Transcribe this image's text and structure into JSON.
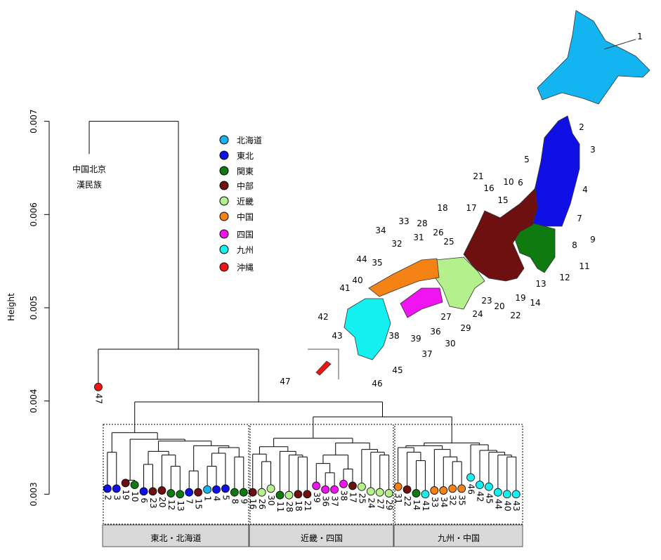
{
  "chart_data": {
    "type": "dendrogram",
    "y_label": "Height",
    "ylim": [
      0.00295,
      0.00705
    ],
    "yticks": [
      0.003,
      0.004,
      0.005,
      0.006,
      0.007
    ],
    "legend": [
      {
        "name": "北海道",
        "color": "#14b4f0"
      },
      {
        "name": "東北",
        "color": "#1010e6"
      },
      {
        "name": "関東",
        "color": "#0f7a0f"
      },
      {
        "name": "中部",
        "color": "#6e1010"
      },
      {
        "name": "近畿",
        "color": "#b4f08c"
      },
      {
        "name": "中国",
        "color": "#f58214"
      },
      {
        "name": "四国",
        "color": "#f014f0"
      },
      {
        "name": "九州",
        "color": "#14f0f0"
      },
      {
        "name": "沖縄",
        "color": "#f01414"
      }
    ],
    "leaves": [
      {
        "label_lines": [
          "中国北京",
          "漢民族"
        ],
        "height": 0.00665
      },
      {
        "label": "47",
        "color": "#f01414",
        "height": 0.00415
      },
      {
        "label": "2",
        "color": "#1010e6",
        "height": 0.00306
      },
      {
        "label": "3",
        "color": "#1010e6",
        "height": 0.00306
      },
      {
        "label": "19",
        "color": "#6e1010",
        "height": 0.00312
      },
      {
        "label": "10",
        "color": "#0f7a0f",
        "height": 0.0031
      },
      {
        "label": "6",
        "color": "#1010e6",
        "height": 0.00303
      },
      {
        "label": "23",
        "color": "#6e1010",
        "height": 0.00303
      },
      {
        "label": "20",
        "color": "#6e1010",
        "height": 0.00304
      },
      {
        "label": "12",
        "color": "#0f7a0f",
        "height": 0.00301
      },
      {
        "label": "13",
        "color": "#0f7a0f",
        "height": 0.003
      },
      {
        "label": "7",
        "color": "#1010e6",
        "height": 0.00302
      },
      {
        "label": "15",
        "color": "#6e1010",
        "height": 0.00302
      },
      {
        "label": "1",
        "color": "#14b4f0",
        "height": 0.00305
      },
      {
        "label": "4",
        "color": "#1010e6",
        "height": 0.00305
      },
      {
        "label": "5",
        "color": "#1010e6",
        "height": 0.00306
      },
      {
        "label": "8",
        "color": "#0f7a0f",
        "height": 0.00302
      },
      {
        "label": "9",
        "color": "#0f7a0f",
        "height": 0.00302
      },
      {
        "label": "16",
        "color": "#6e1010",
        "height": 0.00302
      },
      {
        "label": "26",
        "color": "#b4f08c",
        "height": 0.00302
      },
      {
        "label": "30",
        "color": "#b4f08c",
        "height": 0.00306
      },
      {
        "label": "11",
        "color": "#0f7a0f",
        "height": 0.00299
      },
      {
        "label": "28",
        "color": "#b4f08c",
        "height": 0.00299
      },
      {
        "label": "18",
        "color": "#6e1010",
        "height": 0.003
      },
      {
        "label": "21",
        "color": "#6e1010",
        "height": 0.003
      },
      {
        "label": "39",
        "color": "#f014f0",
        "height": 0.00309
      },
      {
        "label": "36",
        "color": "#f014f0",
        "height": 0.00305
      },
      {
        "label": "37",
        "color": "#f014f0",
        "height": 0.00305
      },
      {
        "label": "38",
        "color": "#f014f0",
        "height": 0.00311
      },
      {
        "label": "17",
        "color": "#6e1010",
        "height": 0.00309
      },
      {
        "label": "25",
        "color": "#b4f08c",
        "height": 0.00308
      },
      {
        "label": "24",
        "color": "#b4f08c",
        "height": 0.00303
      },
      {
        "label": "27",
        "color": "#b4f08c",
        "height": 0.00302
      },
      {
        "label": "29",
        "color": "#b4f08c",
        "height": 0.00301
      },
      {
        "label": "31",
        "color": "#f58214",
        "height": 0.00308
      },
      {
        "label": "22",
        "color": "#6e1010",
        "height": 0.00305
      },
      {
        "label": "14",
        "color": "#0f7a0f",
        "height": 0.00301
      },
      {
        "label": "41",
        "color": "#14f0f0",
        "height": 0.003
      },
      {
        "label": "33",
        "color": "#f58214",
        "height": 0.00304
      },
      {
        "label": "34",
        "color": "#f58214",
        "height": 0.00304
      },
      {
        "label": "32",
        "color": "#f58214",
        "height": 0.00306
      },
      {
        "label": "35",
        "color": "#f58214",
        "height": 0.00306
      },
      {
        "label": "46",
        "color": "#14f0f0",
        "height": 0.00318
      },
      {
        "label": "42",
        "color": "#14f0f0",
        "height": 0.0031
      },
      {
        "label": "45",
        "color": "#14f0f0",
        "height": 0.00308
      },
      {
        "label": "44",
        "color": "#14f0f0",
        "height": 0.00302
      },
      {
        "label": "40",
        "color": "#14f0f0",
        "height": 0.003
      },
      {
        "label": "43",
        "color": "#14f0f0",
        "height": 0.003
      }
    ],
    "merges": [
      [
        -3,
        -4,
        0.00345
      ],
      [
        -5,
        -6,
        0.00315
      ],
      [
        -7,
        -8,
        0.00332
      ],
      [
        -10,
        -11,
        0.0033
      ],
      [
        -9,
        4,
        0.00342
      ],
      [
        3,
        5,
        0.00346
      ],
      [
        -12,
        -13,
        0.00325
      ],
      [
        -14,
        -15,
        0.0033
      ],
      [
        -17,
        -18,
        0.0034
      ],
      [
        8,
        -16,
        0.00344
      ],
      [
        10,
        9,
        0.0035
      ],
      [
        7,
        11,
        0.00352
      ],
      [
        6,
        12,
        0.00357
      ],
      [
        2,
        13,
        0.00359
      ],
      [
        1,
        14,
        0.00366
      ],
      [
        -20,
        -21,
        0.00335
      ],
      [
        -19,
        16,
        0.00343
      ],
      [
        -24,
        -25,
        0.0034
      ],
      [
        -23,
        18,
        0.00342
      ],
      [
        -22,
        19,
        0.00346
      ],
      [
        17,
        20,
        0.00351
      ],
      [
        -27,
        -28,
        0.00323
      ],
      [
        -26,
        22,
        0.00333
      ],
      [
        -29,
        -30,
        0.00327
      ],
      [
        23,
        24,
        0.00342
      ],
      [
        -33,
        -34,
        0.00342
      ],
      [
        -32,
        26,
        0.00345
      ],
      [
        -31,
        27,
        0.00348
      ],
      [
        25,
        28,
        0.00355
      ],
      [
        21,
        29,
        0.0036
      ],
      [
        -37,
        -38,
        0.00336
      ],
      [
        -36,
        31,
        0.00345
      ],
      [
        -35,
        32,
        0.0035
      ],
      [
        -41,
        -42,
        0.00335
      ],
      [
        -40,
        34,
        0.0034
      ],
      [
        -39,
        35,
        0.00348
      ],
      [
        33,
        36,
        0.00352
      ],
      [
        -47,
        -48,
        0.0034
      ],
      [
        -46,
        38,
        0.00342
      ],
      [
        -45,
        39,
        0.00345
      ],
      [
        -44,
        40,
        0.00347
      ],
      [
        -43,
        41,
        0.00353
      ],
      [
        37,
        42,
        0.00355
      ],
      [
        30,
        43,
        0.00383
      ],
      [
        15,
        44,
        0.00399
      ],
      [
        -2,
        45,
        0.004555
      ],
      [
        -1,
        46,
        0.007
      ]
    ],
    "groups": [
      "東北・北海道",
      "近畿・四国",
      "九州・中国"
    ],
    "map_labels": [
      "1",
      "2",
      "3",
      "4",
      "5",
      "6",
      "7",
      "8",
      "9",
      "10",
      "11",
      "12",
      "13",
      "14",
      "15",
      "16",
      "17",
      "18",
      "19",
      "20",
      "21",
      "22",
      "23",
      "24",
      "25",
      "26",
      "27",
      "28",
      "29",
      "30",
      "31",
      "32",
      "33",
      "34",
      "35",
      "36",
      "37",
      "38",
      "39",
      "40",
      "41",
      "42",
      "43",
      "44",
      "45",
      "46",
      "47"
    ]
  }
}
